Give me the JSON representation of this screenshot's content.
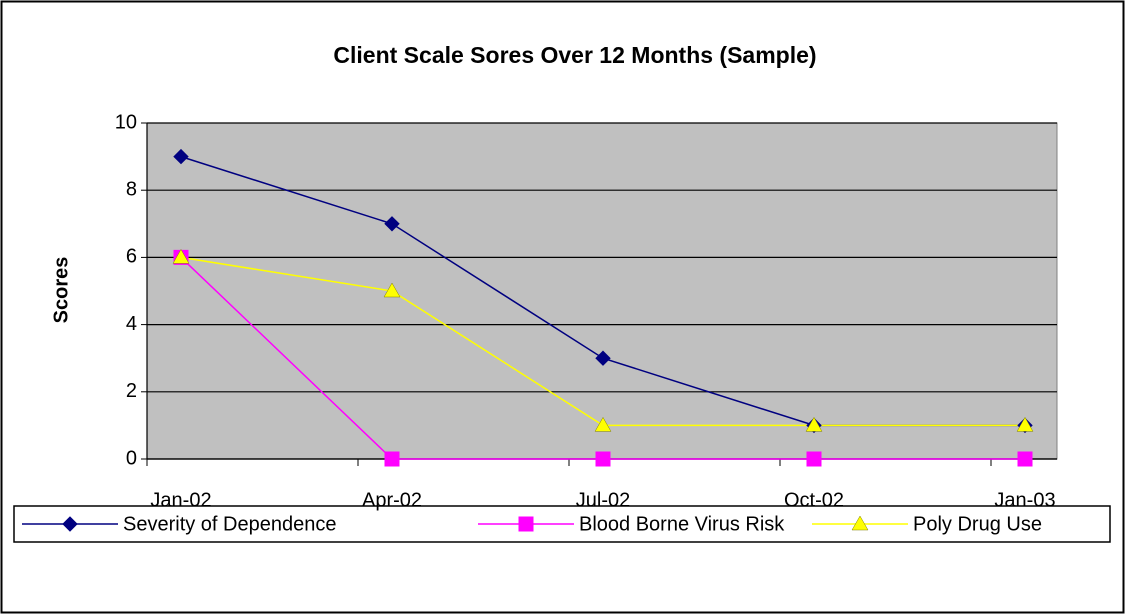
{
  "chart_data": {
    "type": "line",
    "title": "Client Scale Sores Over 12 Months (Sample)",
    "y_label": "Scores",
    "categories": [
      "Jan-02",
      "Apr-02",
      "Jul-02",
      "Oct-02",
      "Jan-03"
    ],
    "series": [
      {
        "name": "Severity of Dependence",
        "color": "#000080",
        "marker": "diamond",
        "values": [
          9,
          7,
          3,
          1,
          1
        ]
      },
      {
        "name": "Blood Borne Virus Risk",
        "color": "#ff00ff",
        "marker": "square",
        "values": [
          6,
          0,
          0,
          0,
          0
        ]
      },
      {
        "name": "Poly Drug Use",
        "color": "#ffff00",
        "marker": "triangle",
        "values": [
          6,
          5,
          1,
          1,
          1
        ]
      }
    ],
    "ylim": [
      0,
      10
    ],
    "yticks": [
      0,
      2,
      4,
      6,
      8,
      10
    ],
    "grid": true,
    "legend": "bottom",
    "plot_background": "#c0c0c0"
  }
}
